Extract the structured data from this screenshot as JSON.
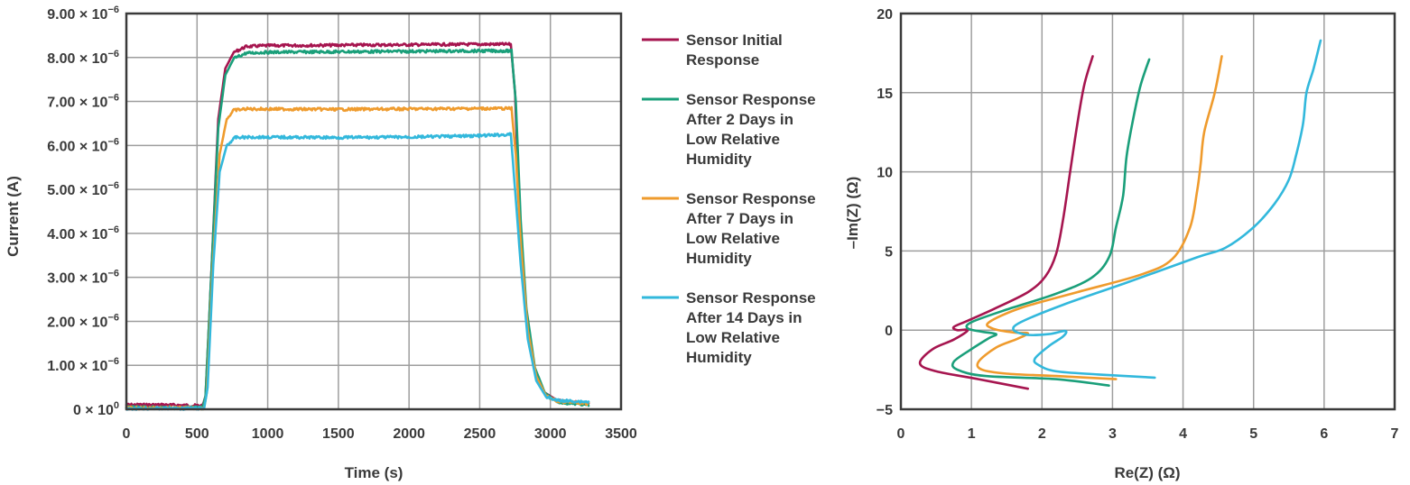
{
  "chart_data": [
    {
      "type": "line",
      "title": "",
      "xlabel": "Time (s)",
      "ylabel": "Current (A)",
      "xlim": [
        0,
        3500
      ],
      "ylim": [
        0,
        9e-06
      ],
      "grid": true,
      "legend_position": "right",
      "x_ticks": [
        "0",
        "500",
        "1000",
        "1500",
        "2000",
        "2500",
        "3000",
        "3500"
      ],
      "y_ticks": [
        {
          "m": "0 × 10",
          "e": "0"
        },
        {
          "m": "1.00 × 10",
          "e": "−6"
        },
        {
          "m": "2.00 × 10",
          "e": "−6"
        },
        {
          "m": "3.00 × 10",
          "e": "−6"
        },
        {
          "m": "4.00 × 10",
          "e": "−6"
        },
        {
          "m": "5.00 × 10",
          "e": "−6"
        },
        {
          "m": "6.00 × 10",
          "e": "−6"
        },
        {
          "m": "7.00 × 10",
          "e": "−6"
        },
        {
          "m": "8.00 × 10",
          "e": "−6"
        },
        {
          "m": "9.00 × 10",
          "e": "−6"
        }
      ],
      "series": [
        {
          "name_lines": [
            "Sensor Initial",
            "Response"
          ],
          "color": "#a6154f",
          "points": [
            [
              0,
              1e-07
            ],
            [
              250,
              1e-07
            ],
            [
              540,
              8e-08
            ],
            [
              560,
              3e-07
            ],
            [
              600,
              3e-06
            ],
            [
              650,
              6.6e-06
            ],
            [
              700,
              7.75e-06
            ],
            [
              760,
              8.12e-06
            ],
            [
              850,
              8.25e-06
            ],
            [
              1000,
              8.27e-06
            ],
            [
              1500,
              8.28e-06
            ],
            [
              2000,
              8.29e-06
            ],
            [
              2500,
              8.3e-06
            ],
            [
              2720,
              8.3e-06
            ],
            [
              2750,
              7.2e-06
            ],
            [
              2780,
              4.5e-06
            ],
            [
              2820,
              2.4e-06
            ],
            [
              2880,
              1e-06
            ],
            [
              2950,
              4e-07
            ],
            [
              3050,
              2e-07
            ],
            [
              3270,
              1.3e-07
            ]
          ]
        },
        {
          "name_lines": [
            "Sensor Response",
            "After 2 Days in",
            "Low Relative",
            "Humidity"
          ],
          "color": "#1a9f7a",
          "points": [
            [
              0,
              4e-08
            ],
            [
              540,
              4e-08
            ],
            [
              560,
              3e-07
            ],
            [
              600,
              3e-06
            ],
            [
              650,
              6.4e-06
            ],
            [
              700,
              7.6e-06
            ],
            [
              760,
              7.98e-06
            ],
            [
              850,
              8.1e-06
            ],
            [
              1000,
              8.12e-06
            ],
            [
              1500,
              8.13e-06
            ],
            [
              2000,
              8.14e-06
            ],
            [
              2500,
              8.15e-06
            ],
            [
              2725,
              8.15e-06
            ],
            [
              2755,
              7e-06
            ],
            [
              2790,
              4.3e-06
            ],
            [
              2830,
              2.3e-06
            ],
            [
              2890,
              9.5e-07
            ],
            [
              2960,
              3.8e-07
            ],
            [
              3050,
              1.6e-07
            ],
            [
              3270,
              1e-07
            ]
          ]
        },
        {
          "name_lines": [
            "Sensor Response",
            "After 7 Days in",
            "Low Relative",
            "Humidity"
          ],
          "color": "#ef9b2d",
          "points": [
            [
              0,
              3e-08
            ],
            [
              550,
              3e-08
            ],
            [
              570,
              4e-07
            ],
            [
              610,
              3.2e-06
            ],
            [
              660,
              5.8e-06
            ],
            [
              710,
              6.6e-06
            ],
            [
              760,
              6.8e-06
            ],
            [
              850,
              6.83e-06
            ],
            [
              1500,
              6.82e-06
            ],
            [
              2000,
              6.83e-06
            ],
            [
              2500,
              6.84e-06
            ],
            [
              2725,
              6.84e-06
            ],
            [
              2755,
              5.8e-06
            ],
            [
              2790,
              3.8e-06
            ],
            [
              2840,
              1.8e-06
            ],
            [
              2900,
              7.5e-07
            ],
            [
              2970,
              3e-07
            ],
            [
              3050,
              1.8e-07
            ],
            [
              3270,
              1.3e-07
            ]
          ]
        },
        {
          "name_lines": [
            "Sensor Response",
            "After 14 Days in",
            "Low Relative",
            "Humidity"
          ],
          "color": "#32b8dc",
          "points": [
            [
              0,
              2e-08
            ],
            [
              550,
              2e-08
            ],
            [
              575,
              5e-07
            ],
            [
              615,
              3.3e-06
            ],
            [
              660,
              5.4e-06
            ],
            [
              710,
              6e-06
            ],
            [
              770,
              6.18e-06
            ],
            [
              900,
              6.19e-06
            ],
            [
              1500,
              6.18e-06
            ],
            [
              2000,
              6.19e-06
            ],
            [
              2500,
              6.22e-06
            ],
            [
              2720,
              6.25e-06
            ],
            [
              2750,
              5e-06
            ],
            [
              2790,
              3.3e-06
            ],
            [
              2840,
              1.6e-06
            ],
            [
              2900,
              6.5e-07
            ],
            [
              2970,
              2.8e-07
            ],
            [
              3050,
              2e-07
            ],
            [
              3270,
              1.7e-07
            ]
          ]
        }
      ]
    },
    {
      "type": "line",
      "title": "",
      "xlabel": "Re(Z) (Ω)",
      "ylabel": "–Im(Z) (Ω)",
      "xlim": [
        0,
        7
      ],
      "ylim": [
        -5,
        20
      ],
      "grid": true,
      "x_ticks": [
        "0",
        "1",
        "2",
        "3",
        "4",
        "5",
        "6",
        "7"
      ],
      "y_ticks": [
        "−5",
        "0",
        "5",
        "10",
        "15",
        "20"
      ],
      "series": [
        {
          "color": "#a6154f",
          "points": [
            [
              1.8,
              -3.7
            ],
            [
              1.1,
              -3.1
            ],
            [
              0.5,
              -2.6
            ],
            [
              0.27,
              -2.1
            ],
            [
              0.45,
              -1.2
            ],
            [
              0.75,
              -0.6
            ],
            [
              0.95,
              0
            ],
            [
              0.8,
              0
            ],
            [
              0.75,
              0.2
            ],
            [
              0.95,
              0.6
            ],
            [
              1.3,
              1.3
            ],
            [
              1.8,
              2.4
            ],
            [
              2.05,
              3.4
            ],
            [
              2.2,
              4.8
            ],
            [
              2.3,
              7.0
            ],
            [
              2.4,
              10.0
            ],
            [
              2.5,
              13.0
            ],
            [
              2.6,
              15.5
            ],
            [
              2.72,
              17.3
            ]
          ]
        },
        {
          "color": "#1a9f7a",
          "points": [
            [
              2.95,
              -3.5
            ],
            [
              2.2,
              -3.1
            ],
            [
              1.2,
              -2.9
            ],
            [
              0.8,
              -2.5
            ],
            [
              0.75,
              -2.0
            ],
            [
              1.0,
              -1.2
            ],
            [
              1.25,
              -0.5
            ],
            [
              1.35,
              -0.25
            ],
            [
              1.15,
              -0.1
            ],
            [
              0.95,
              0.1
            ],
            [
              1.0,
              0.5
            ],
            [
              1.5,
              1.3
            ],
            [
              2.2,
              2.3
            ],
            [
              2.7,
              3.3
            ],
            [
              2.95,
              4.6
            ],
            [
              3.05,
              6.5
            ],
            [
              3.15,
              8.5
            ],
            [
              3.2,
              11.0
            ],
            [
              3.3,
              13.5
            ],
            [
              3.4,
              15.5
            ],
            [
              3.52,
              17.1
            ]
          ]
        },
        {
          "color": "#ef9b2d",
          "points": [
            [
              3.05,
              -3.1
            ],
            [
              2.2,
              -2.9
            ],
            [
              1.5,
              -2.75
            ],
            [
              1.15,
              -2.5
            ],
            [
              1.1,
              -2.0
            ],
            [
              1.35,
              -1.1
            ],
            [
              1.65,
              -0.55
            ],
            [
              1.8,
              -0.2
            ],
            [
              1.6,
              -0.15
            ],
            [
              1.3,
              0.1
            ],
            [
              1.25,
              0.5
            ],
            [
              1.7,
              1.4
            ],
            [
              2.5,
              2.4
            ],
            [
              3.4,
              3.5
            ],
            [
              3.85,
              4.5
            ],
            [
              4.1,
              6.5
            ],
            [
              4.2,
              8.8
            ],
            [
              4.25,
              10.5
            ],
            [
              4.3,
              12.5
            ],
            [
              4.45,
              15.0
            ],
            [
              4.55,
              17.3
            ]
          ]
        },
        {
          "color": "#32b8dc",
          "points": [
            [
              3.6,
              -3.0
            ],
            [
              2.8,
              -2.8
            ],
            [
              2.2,
              -2.6
            ],
            [
              1.95,
              -2.2
            ],
            [
              1.9,
              -1.8
            ],
            [
              2.1,
              -1.0
            ],
            [
              2.3,
              -0.4
            ],
            [
              2.33,
              -0.05
            ],
            [
              2.1,
              -0.25
            ],
            [
              1.8,
              -0.3
            ],
            [
              1.6,
              0
            ],
            [
              1.7,
              0.5
            ],
            [
              2.3,
              1.6
            ],
            [
              3.2,
              3.0
            ],
            [
              4.2,
              4.6
            ],
            [
              4.6,
              5.2
            ],
            [
              5.0,
              6.5
            ],
            [
              5.3,
              8.0
            ],
            [
              5.5,
              9.5
            ],
            [
              5.6,
              11.0
            ],
            [
              5.7,
              13.0
            ],
            [
              5.75,
              15.0
            ],
            [
              5.85,
              16.5
            ],
            [
              5.95,
              18.3
            ]
          ]
        }
      ]
    }
  ]
}
